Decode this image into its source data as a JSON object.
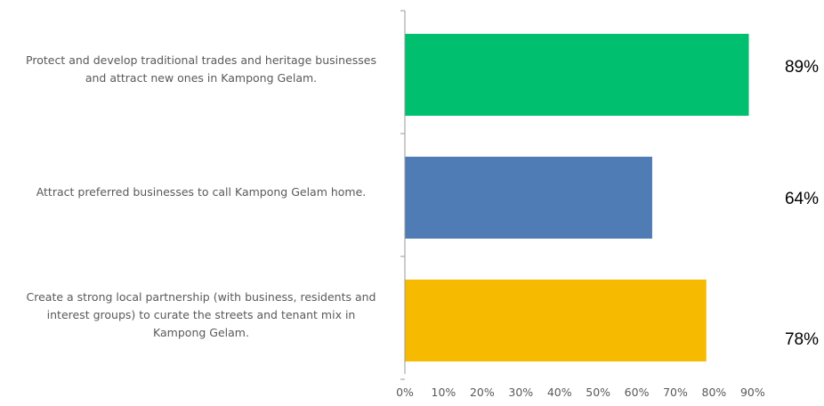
{
  "chart_data": {
    "type": "bar",
    "orientation": "horizontal",
    "categories": [
      "Protect and develop traditional trades and heritage businesses and attract new ones in Kampong Gelam.",
      "Attract preferred businesses to call Kampong Gelam home.",
      "Create a strong local partnership (with business, residents and interest groups) to curate the streets and tenant mix in Kampong Gelam."
    ],
    "category_lines": [
      [
        "Protect and develop traditional trades and heritage businesses",
        "and attract new ones in Kampong Gelam."
      ],
      [
        "Attract preferred businesses to call Kampong Gelam home."
      ],
      [
        "Create a strong local partnership (with business, residents and",
        "interest groups) to curate the streets and tenant mix in",
        "Kampong Gelam."
      ]
    ],
    "values": [
      89,
      64,
      78
    ],
    "value_labels": [
      "89%",
      "64%",
      "78%"
    ],
    "colors": [
      "#00BF6F",
      "#507CB6",
      "#F6BA00"
    ],
    "xlim": [
      0,
      90
    ],
    "xticks": [
      0,
      10,
      20,
      30,
      40,
      50,
      60,
      70,
      80,
      90
    ],
    "xtick_labels": [
      "0%",
      "10%",
      "20%",
      "30%",
      "40%",
      "50%",
      "60%",
      "70%",
      "80%",
      "90%"
    ],
    "title": "",
    "xlabel": "",
    "ylabel": "",
    "grid": false,
    "legend": "none"
  }
}
